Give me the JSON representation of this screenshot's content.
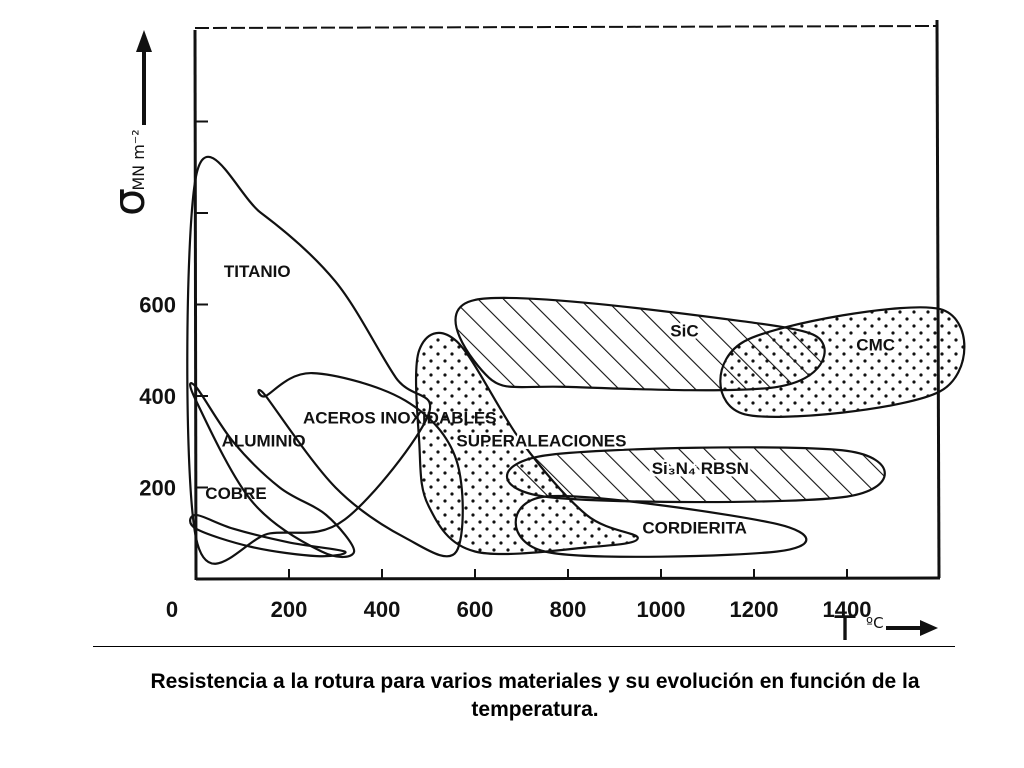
{
  "chart_data": {
    "type": "area",
    "xlabel": "T",
    "xlabel_unit": "ºC",
    "ylabel": "σ",
    "ylabel_unit": "MN m⁻²",
    "xlim": [
      0,
      1600
    ],
    "ylim": [
      0,
      1200
    ],
    "x_ticks": [
      0,
      200,
      400,
      600,
      800,
      1000,
      1200,
      1400
    ],
    "x_tick_labels": [
      "0",
      "200",
      "400",
      "600",
      "800",
      "1000",
      "1200",
      "1400"
    ],
    "y_ticks": [
      200,
      400,
      600
    ],
    "y_tick_labels": [
      "200",
      "400",
      "600"
    ],
    "grid": false,
    "colors": {
      "ink": "#111111",
      "background": "#ffffff"
    },
    "series": [
      {
        "name": "TITANIO",
        "fill": "none",
        "outline": [
          [
            0,
            880
          ],
          [
            140,
            800
          ],
          [
            300,
            650
          ],
          [
            430,
            440
          ],
          [
            500,
            360
          ],
          [
            320,
            130
          ],
          [
            160,
            100
          ],
          [
            0,
            90
          ]
        ],
        "label_at": [
          60,
          660
        ]
      },
      {
        "name": "ALUMINIO",
        "fill": "none",
        "outline": [
          [
            0,
            420
          ],
          [
            80,
            300
          ],
          [
            180,
            200
          ],
          [
            280,
            140
          ],
          [
            340,
            60
          ],
          [
            270,
            60
          ],
          [
            120,
            170
          ],
          [
            0,
            390
          ]
        ],
        "label_at": [
          55,
          290
        ]
      },
      {
        "name": "COBRE",
        "fill": "none",
        "outline": [
          [
            0,
            140
          ],
          [
            80,
            110
          ],
          [
            200,
            80
          ],
          [
            320,
            60
          ],
          [
            260,
            50
          ],
          [
            120,
            70
          ],
          [
            0,
            110
          ]
        ],
        "label_at": [
          20,
          175
        ]
      },
      {
        "name": "ACEROS INOXIDABLES",
        "fill": "none",
        "outline": [
          [
            150,
            400
          ],
          [
            250,
            450
          ],
          [
            450,
            390
          ],
          [
            560,
            260
          ],
          [
            560,
            60
          ],
          [
            450,
            90
          ],
          [
            300,
            200
          ],
          [
            150,
            400
          ]
        ],
        "label_at": [
          230,
          340
        ]
      },
      {
        "name": "SUPERALEACIONES",
        "fill": "dots",
        "outline": [
          [
            480,
            500
          ],
          [
            560,
            520
          ],
          [
            700,
            300
          ],
          [
            840,
            140
          ],
          [
            950,
            90
          ],
          [
            850,
            70
          ],
          [
            600,
            60
          ],
          [
            500,
            160
          ],
          [
            480,
            300
          ]
        ],
        "label_at": [
          560,
          290
        ]
      },
      {
        "name": "SiC",
        "fill": "hatch",
        "outline": [
          [
            600,
            610
          ],
          [
            1200,
            560
          ],
          [
            1350,
            510
          ],
          [
            1250,
            420
          ],
          [
            800,
            420
          ],
          [
            630,
            440
          ]
        ],
        "label_at": [
          1020,
          530
        ]
      },
      {
        "name": "CMC",
        "fill": "dots",
        "outline": [
          [
            1180,
            520
          ],
          [
            1600,
            590
          ],
          [
            1600,
            410
          ],
          [
            1180,
            360
          ]
        ],
        "label_at": [
          1420,
          500
        ]
      },
      {
        "name": "Si₃N₄ RBSN",
        "fill": "hatch",
        "outline": [
          [
            750,
            270
          ],
          [
            1400,
            280
          ],
          [
            1400,
            180
          ],
          [
            750,
            180
          ]
        ],
        "label_at": [
          980,
          230
        ]
      },
      {
        "name": "CORDIERITA",
        "fill": "none",
        "outline": [
          [
            750,
            180
          ],
          [
            1250,
            120
          ],
          [
            1250,
            60
          ],
          [
            750,
            60
          ]
        ],
        "label_at": [
          960,
          100
        ]
      }
    ]
  },
  "caption": "Resistencia a la rotura para varios materiales y su evolución en función de la temperatura."
}
